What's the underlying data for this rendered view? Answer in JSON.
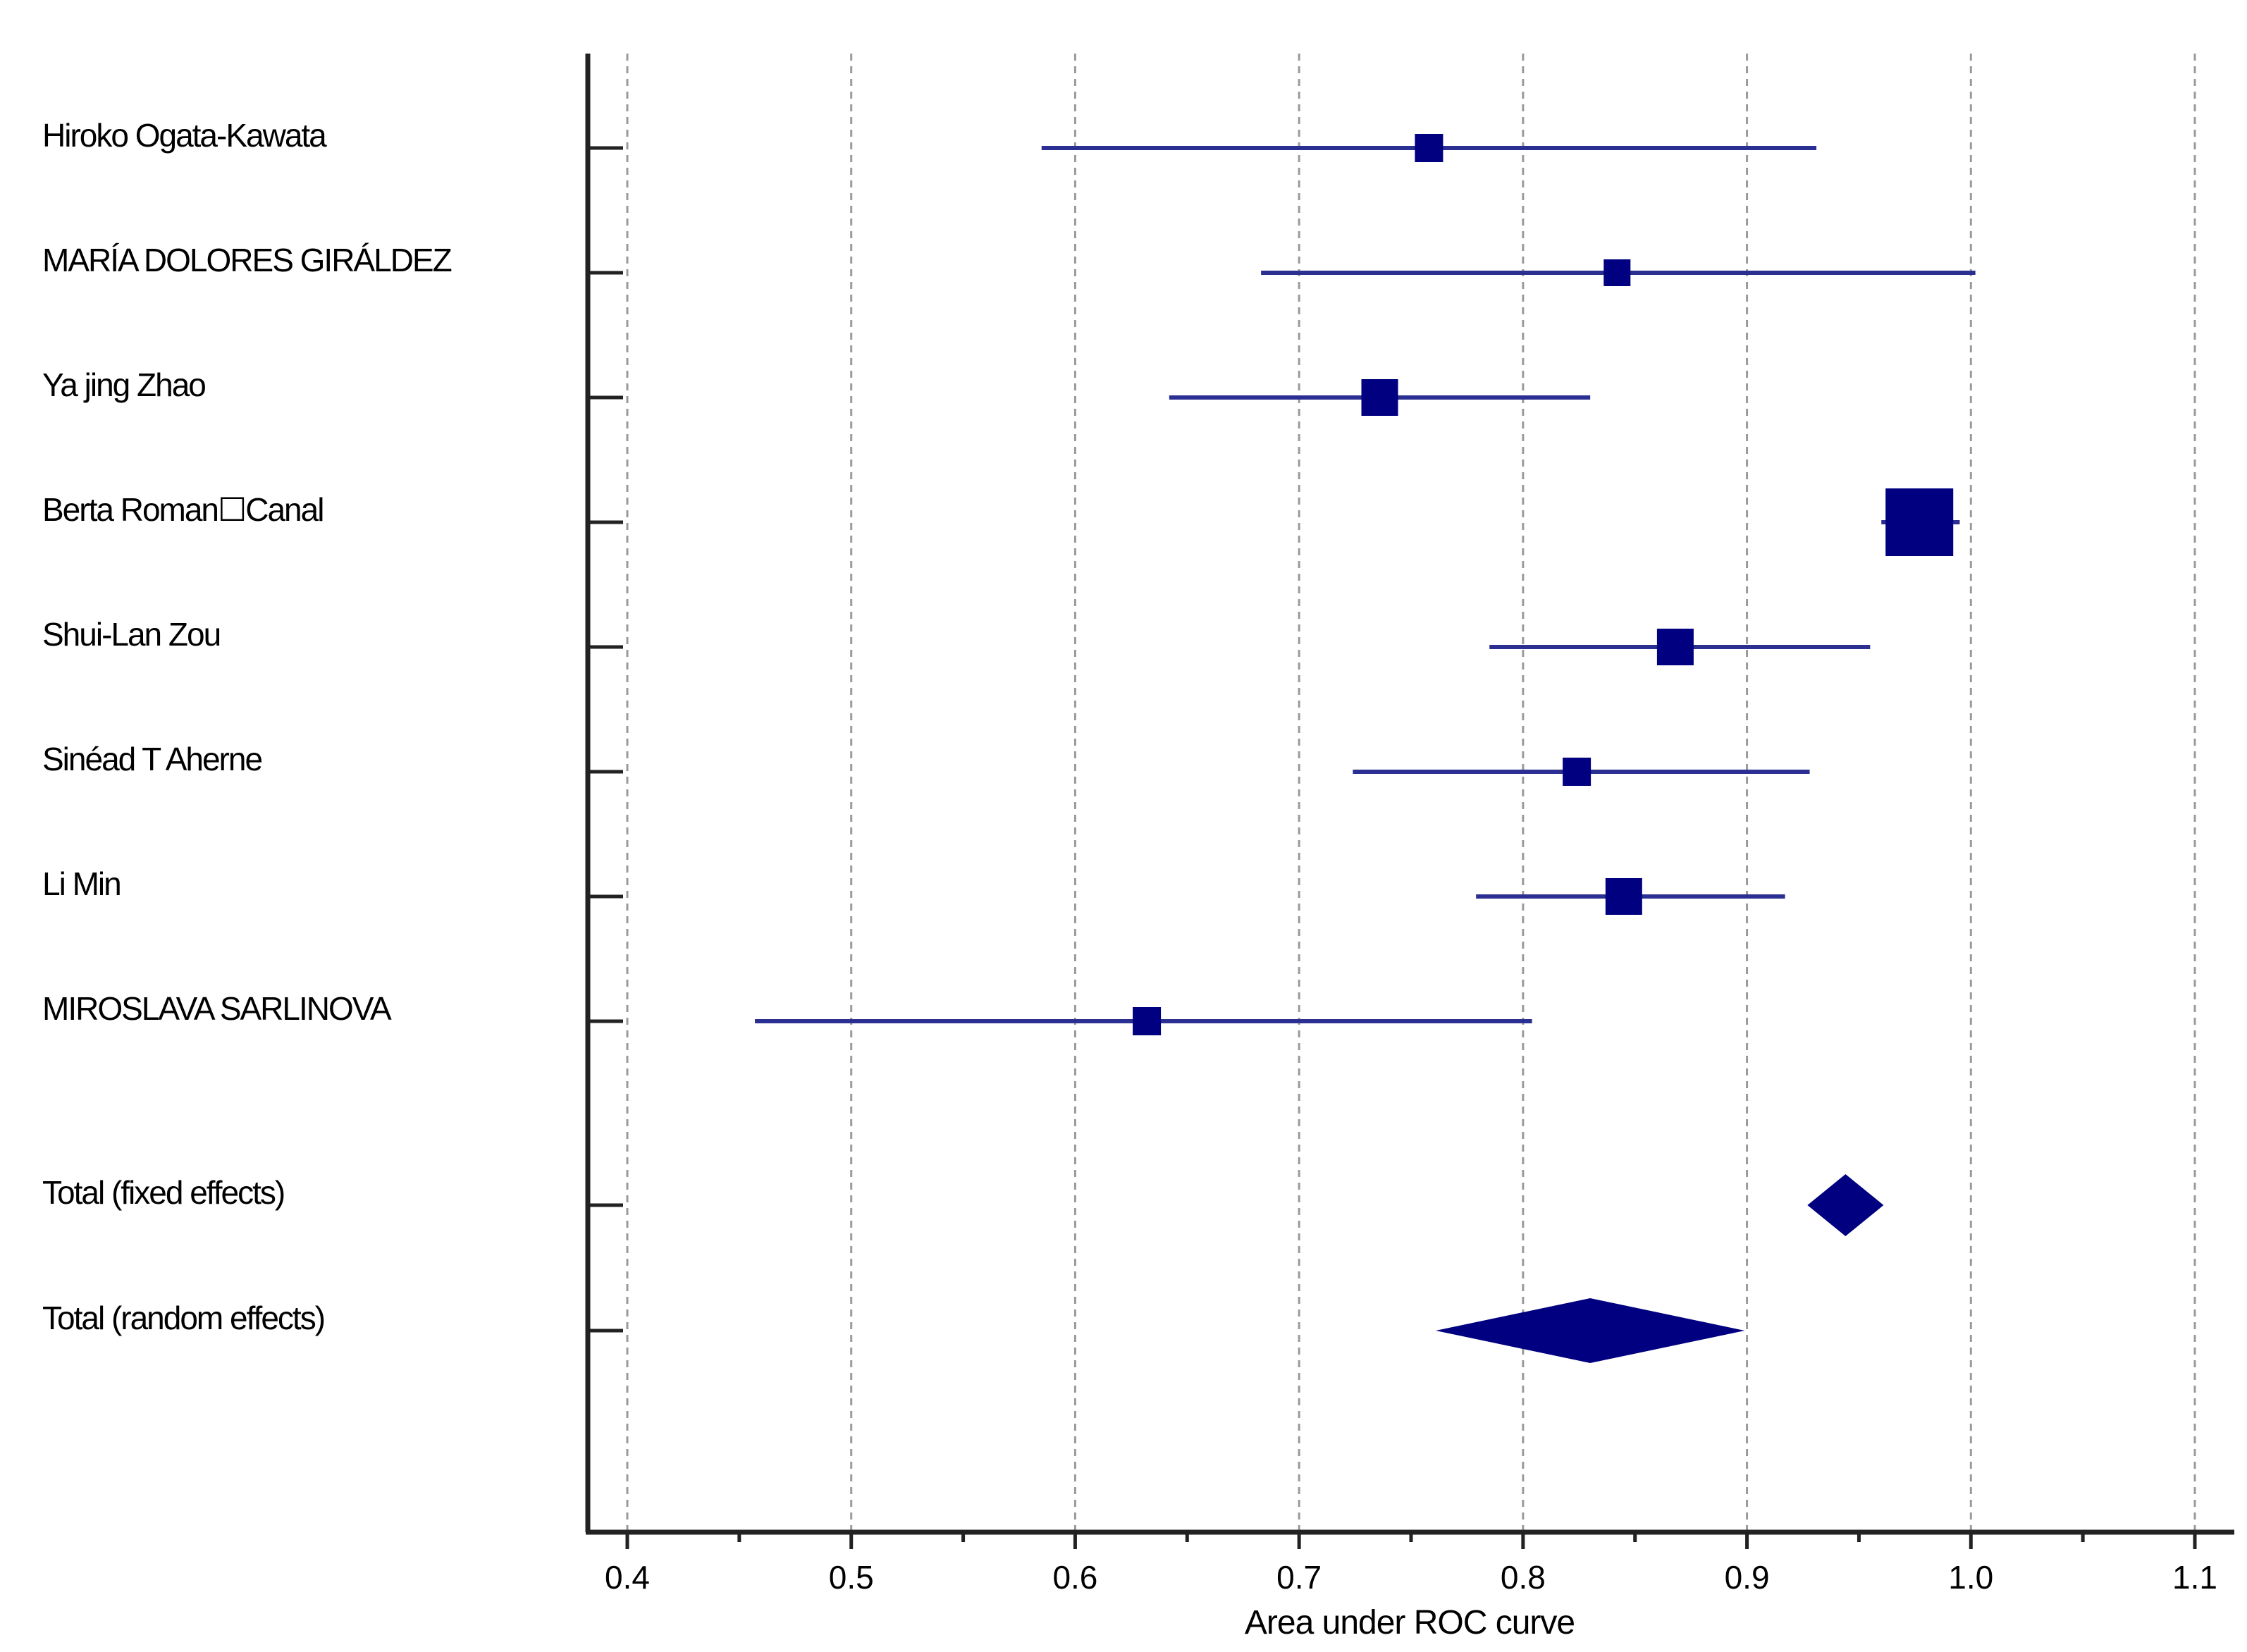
{
  "chart_data": {
    "type": "forest",
    "title": "",
    "xlabel": "Area under ROC curve",
    "xlim": [
      0.38,
      1.12
    ],
    "xticks": [
      "0.4",
      "0.5",
      "0.6",
      "0.7",
      "0.8",
      "0.9",
      "1.0",
      "1.1"
    ],
    "grid": true,
    "colors": {
      "marker": "#000080",
      "ci": "#2b2f91",
      "axis": "#222222",
      "grid": "#9a9a9a"
    },
    "studies": [
      {
        "name": "Hiroko Ogata-Kawata",
        "estimate": 0.758,
        "lower": 0.585,
        "upper": 0.931,
        "weight": 1.0
      },
      {
        "name": "MARÍA DOLORES GIRÁLDEZ",
        "estimate": 0.842,
        "lower": 0.683,
        "upper": 1.002,
        "weight": 0.95
      },
      {
        "name": "Ya jing Zhao",
        "estimate": 0.736,
        "lower": 0.642,
        "upper": 0.83,
        "weight": 1.3
      },
      {
        "name": "Berta Roman☐Canal",
        "estimate": 0.977,
        "lower": 0.96,
        "upper": 0.995,
        "weight": 2.4
      },
      {
        "name": "Shui-Lan Zou",
        "estimate": 0.868,
        "lower": 0.785,
        "upper": 0.955,
        "weight": 1.3
      },
      {
        "name": "Sinéad T Aherne",
        "estimate": 0.824,
        "lower": 0.724,
        "upper": 0.928,
        "weight": 1.0
      },
      {
        "name": "Li Min",
        "estimate": 0.845,
        "lower": 0.779,
        "upper": 0.917,
        "weight": 1.3
      },
      {
        "name": "MIROSLAVA SARLINOVA",
        "estimate": 0.632,
        "lower": 0.457,
        "upper": 0.804,
        "weight": 1.0
      }
    ],
    "totals": [
      {
        "name": "Total (fixed effects)",
        "estimate": 0.944,
        "lower": 0.927,
        "upper": 0.961
      },
      {
        "name": "Total (random effects)",
        "estimate": 0.83,
        "lower": 0.761,
        "upper": 0.899
      }
    ]
  }
}
